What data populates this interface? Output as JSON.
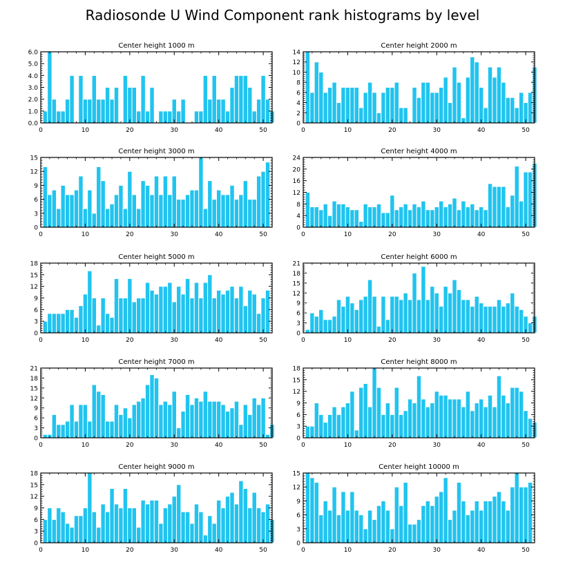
{
  "title": "Radiosonde U Wind Component rank histograms by level",
  "colors": {
    "bar": "#21c4ef",
    "axis": "#000000",
    "bar_edge": "#ffffff"
  },
  "chart_data": [
    {
      "type": "bar",
      "title": "Center height 1000 m",
      "xlim": [
        0,
        52
      ],
      "ylim": [
        0,
        6
      ],
      "xticks": [
        "0",
        "10",
        "20",
        "30",
        "40",
        "50"
      ],
      "yticks": [
        "0.0",
        "1.0",
        "2.0",
        "3.0",
        "4.0",
        "5.0",
        "6.0"
      ],
      "values": [
        1,
        6,
        2,
        1,
        1,
        2,
        4,
        0,
        4,
        2,
        2,
        4,
        2,
        2,
        3,
        2,
        3,
        0,
        4,
        3,
        3,
        1,
        4,
        1,
        3,
        0,
        1,
        1,
        1,
        2,
        1,
        2,
        0,
        0,
        1,
        1,
        4,
        2,
        4,
        2,
        2,
        1,
        3,
        4,
        4,
        4,
        3,
        1,
        2,
        4,
        2,
        1
      ]
    },
    {
      "type": "bar",
      "title": "Center height 2000 m",
      "xlim": [
        0,
        52
      ],
      "ylim": [
        0,
        14
      ],
      "xticks": [
        "0",
        "10",
        "20",
        "30",
        "40",
        "50"
      ],
      "yticks": [
        "0",
        "2",
        "4",
        "6",
        "8",
        "10",
        "12",
        "14"
      ],
      "values": [
        14,
        6,
        12,
        10,
        6,
        7,
        8,
        4,
        7,
        7,
        7,
        7,
        3,
        6,
        8,
        6,
        2,
        6,
        7,
        7,
        8,
        3,
        3,
        0,
        7,
        5,
        8,
        8,
        6,
        6,
        7,
        9,
        4,
        11,
        8,
        1,
        9,
        13,
        12,
        7,
        3,
        11,
        9,
        11,
        8,
        5,
        5,
        3,
        6,
        4,
        6,
        11
      ]
    },
    {
      "type": "bar",
      "title": "Center height 3000 m",
      "xlim": [
        0,
        52
      ],
      "ylim": [
        0,
        15
      ],
      "xticks": [
        "0",
        "10",
        "20",
        "30",
        "40",
        "50"
      ],
      "yticks": [
        "0",
        "3",
        "6",
        "9",
        "12",
        "15"
      ],
      "values": [
        13,
        7,
        8,
        4,
        9,
        7,
        7,
        8,
        11,
        4,
        8,
        3,
        13,
        10,
        4,
        5,
        7,
        9,
        4,
        12,
        7,
        4,
        10,
        9,
        7,
        11,
        7,
        11,
        7,
        11,
        6,
        6,
        7,
        8,
        8,
        15,
        4,
        10,
        6,
        8,
        7,
        7,
        9,
        6,
        7,
        10,
        6,
        6,
        11,
        12,
        14,
        0
      ]
    },
    {
      "type": "bar",
      "title": "Center height 4000 m",
      "xlim": [
        0,
        52
      ],
      "ylim": [
        0,
        24
      ],
      "xticks": [
        "0",
        "10",
        "20",
        "30",
        "40",
        "50"
      ],
      "yticks": [
        "0",
        "4",
        "8",
        "12",
        "16",
        "20",
        "24"
      ],
      "values": [
        12,
        7,
        7,
        6,
        8,
        4,
        9,
        8,
        8,
        7,
        6,
        6,
        2,
        8,
        7,
        7,
        8,
        5,
        5,
        11,
        6,
        7,
        8,
        6,
        8,
        7,
        9,
        6,
        6,
        7,
        9,
        7,
        8,
        10,
        6,
        9,
        7,
        8,
        6,
        7,
        6,
        15,
        14,
        14,
        14,
        7,
        11,
        21,
        9,
        19,
        19,
        22
      ]
    },
    {
      "type": "bar",
      "title": "Center height 5000 m",
      "xlim": [
        0,
        52
      ],
      "ylim": [
        0,
        18
      ],
      "xticks": [
        "0",
        "10",
        "20",
        "30",
        "40",
        "50"
      ],
      "yticks": [
        "0",
        "3",
        "6",
        "9",
        "12",
        "15",
        "18"
      ],
      "values": [
        3,
        5,
        5,
        5,
        5,
        6,
        6,
        4,
        7,
        10,
        16,
        9,
        2,
        9,
        5,
        4,
        14,
        9,
        9,
        14,
        8,
        9,
        9,
        13,
        11,
        10,
        12,
        12,
        13,
        8,
        12,
        10,
        14,
        9,
        13,
        9,
        13,
        15,
        9,
        11,
        10,
        11,
        12,
        9,
        12,
        7,
        11,
        10,
        5,
        9,
        11,
        0
      ]
    },
    {
      "type": "bar",
      "title": "Center height 6000 m",
      "xlim": [
        0,
        52
      ],
      "ylim": [
        0,
        21
      ],
      "xticks": [
        "0",
        "10",
        "20",
        "30",
        "40",
        "50"
      ],
      "yticks": [
        "0",
        "3",
        "6",
        "9",
        "12",
        "15",
        "18",
        "21"
      ],
      "values": [
        1,
        6,
        5,
        7,
        4,
        4,
        5,
        10,
        8,
        11,
        9,
        7,
        10,
        11,
        16,
        11,
        2,
        11,
        4,
        11,
        11,
        10,
        12,
        10,
        18,
        10,
        20,
        10,
        14,
        12,
        8,
        14,
        12,
        16,
        13,
        10,
        10,
        8,
        11,
        9,
        8,
        8,
        8,
        10,
        8,
        9,
        12,
        8,
        7,
        5,
        3,
        5
      ]
    },
    {
      "type": "bar",
      "title": "Center height 7000 m",
      "xlim": [
        0,
        52
      ],
      "ylim": [
        0,
        21
      ],
      "xticks": [
        "0",
        "10",
        "20",
        "30",
        "40",
        "50"
      ],
      "yticks": [
        "0",
        "3",
        "6",
        "9",
        "12",
        "15",
        "18",
        "21"
      ],
      "values": [
        1,
        1,
        7,
        4,
        4,
        5,
        10,
        5,
        10,
        10,
        5,
        16,
        14,
        13,
        5,
        5,
        10,
        7,
        9,
        6,
        10,
        11,
        12,
        16,
        19,
        18,
        10,
        11,
        10,
        14,
        3,
        8,
        13,
        10,
        12,
        11,
        14,
        11,
        11,
        11,
        10,
        8,
        9,
        11,
        4,
        10,
        7,
        12,
        10,
        12,
        1,
        4
      ]
    },
    {
      "type": "bar",
      "title": "Center height 8000 m",
      "xlim": [
        0,
        52
      ],
      "ylim": [
        0,
        18
      ],
      "xticks": [
        "0",
        "10",
        "20",
        "30",
        "40",
        "50"
      ],
      "yticks": [
        "0",
        "3",
        "6",
        "9",
        "12",
        "15",
        "18"
      ],
      "values": [
        3,
        3,
        9,
        6,
        4,
        6,
        8,
        6,
        8,
        9,
        12,
        2,
        13,
        14,
        8,
        18,
        13,
        6,
        9,
        6,
        13,
        6,
        7,
        10,
        9,
        16,
        10,
        8,
        9,
        12,
        11,
        11,
        10,
        10,
        10,
        8,
        12,
        7,
        9,
        10,
        8,
        11,
        8,
        16,
        11,
        9,
        13,
        13,
        12,
        7,
        5,
        4
      ]
    },
    {
      "type": "bar",
      "title": "Center height 9000 m",
      "xlim": [
        0,
        52
      ],
      "ylim": [
        0,
        18
      ],
      "xticks": [
        "0",
        "10",
        "20",
        "30",
        "40",
        "50"
      ],
      "yticks": [
        "0",
        "3",
        "6",
        "9",
        "12",
        "15",
        "18"
      ],
      "values": [
        6,
        9,
        6,
        9,
        8,
        5,
        4,
        7,
        7,
        9,
        18,
        8,
        4,
        10,
        8,
        14,
        10,
        9,
        14,
        9,
        9,
        4,
        11,
        10,
        11,
        11,
        5,
        9,
        10,
        12,
        15,
        8,
        8,
        5,
        10,
        8,
        2,
        7,
        5,
        11,
        9,
        12,
        13,
        10,
        16,
        14,
        9,
        13,
        9,
        8,
        10,
        6
      ]
    },
    {
      "type": "bar",
      "title": "Center height 10000 m",
      "xlim": [
        0,
        52
      ],
      "ylim": [
        0,
        15
      ],
      "xticks": [
        "0",
        "10",
        "20",
        "30",
        "40",
        "50"
      ],
      "yticks": [
        "0",
        "3",
        "6",
        "9",
        "12",
        "15"
      ],
      "values": [
        15,
        14,
        13,
        6,
        9,
        7,
        12,
        6,
        11,
        7,
        11,
        7,
        6,
        3,
        7,
        5,
        8,
        9,
        7,
        3,
        12,
        8,
        13,
        4,
        4,
        5,
        8,
        9,
        8,
        10,
        11,
        14,
        5,
        7,
        13,
        9,
        6,
        7,
        9,
        7,
        9,
        9,
        10,
        11,
        9,
        7,
        12,
        15,
        12,
        12,
        13,
        0
      ]
    }
  ]
}
